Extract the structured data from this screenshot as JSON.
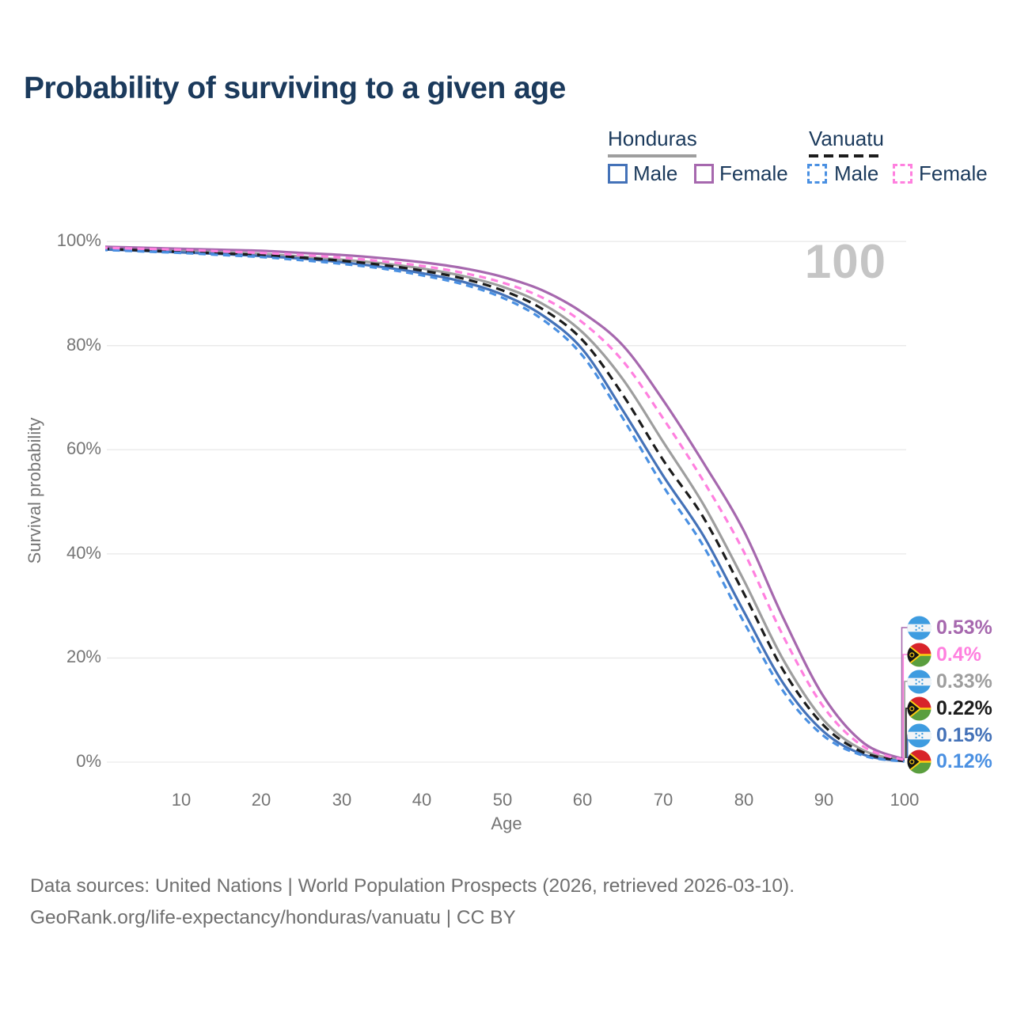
{
  "title": "Probability of surviving to a given age",
  "watermark": "100",
  "legend": {
    "groups": [
      {
        "label": "Honduras",
        "line_style": "solid",
        "underline_color": "#9e9e9e",
        "items": [
          {
            "label": "Male",
            "color": "#4472b8"
          },
          {
            "label": "Female",
            "color": "#a668ae"
          }
        ]
      },
      {
        "label": "Vanuatu",
        "line_style": "dashed",
        "underline_color": "#1c1c1c",
        "items": [
          {
            "label": "Male",
            "color": "#4a90e2"
          },
          {
            "label": "Female",
            "color": "#ff80df"
          }
        ]
      }
    ]
  },
  "chart_data": {
    "type": "line",
    "title": "Probability of surviving to a given age",
    "xlabel": "Age",
    "ylabel": "Survival probability",
    "xlim": [
      0,
      100
    ],
    "ylim": [
      0,
      100
    ],
    "grid": "horizontal",
    "x_tick_labels": [
      "10",
      "20",
      "30",
      "40",
      "50",
      "60",
      "70",
      "80",
      "90",
      "100"
    ],
    "x_tick_values": [
      10,
      20,
      30,
      40,
      50,
      60,
      70,
      80,
      90,
      100
    ],
    "y_tick_labels": [
      "0%",
      "20%",
      "40%",
      "60%",
      "80%",
      "100%"
    ],
    "y_tick_values": [
      0,
      20,
      40,
      60,
      80,
      100
    ],
    "x": [
      0,
      5,
      10,
      15,
      20,
      25,
      30,
      35,
      40,
      45,
      50,
      55,
      60,
      65,
      70,
      75,
      80,
      85,
      90,
      95,
      100
    ],
    "series": [
      {
        "name": "Honduras Both sexes",
        "country": "Honduras",
        "dash": false,
        "color": "#9e9e9e",
        "values": [
          98.7,
          98.4,
          98.2,
          97.9,
          97.6,
          97.1,
          96.5,
          95.8,
          94.8,
          93.4,
          91.3,
          88.0,
          82.5,
          73.5,
          61.5,
          49.5,
          35.0,
          19.5,
          8.0,
          2.2,
          0.33
        ],
        "end_label": "0.33%"
      },
      {
        "name": "Honduras Male",
        "country": "Honduras",
        "dash": false,
        "color": "#4472b8",
        "values": [
          98.5,
          98.2,
          97.9,
          97.6,
          97.2,
          96.7,
          96.0,
          95.1,
          93.9,
          92.3,
          89.8,
          85.8,
          79.2,
          67.5,
          55.0,
          43.5,
          29.0,
          15.0,
          5.8,
          1.4,
          0.15
        ],
        "end_label": "0.15%"
      },
      {
        "name": "Honduras Female",
        "country": "Honduras",
        "dash": false,
        "color": "#a668ae",
        "values": [
          99.0,
          98.8,
          98.6,
          98.4,
          98.2,
          97.8,
          97.4,
          96.8,
          96.0,
          94.9,
          93.2,
          90.6,
          86.3,
          80.0,
          69.5,
          57.5,
          44.5,
          27.5,
          12.5,
          3.6,
          0.53
        ],
        "end_label": "0.53%"
      },
      {
        "name": "Vanuatu Both sexes",
        "country": "Vanuatu",
        "dash": true,
        "color": "#1c1c1c",
        "values": [
          98.6,
          98.3,
          98.0,
          97.7,
          97.4,
          96.9,
          96.3,
          95.5,
          94.4,
          92.9,
          90.6,
          87.0,
          81.0,
          70.5,
          58.0,
          47.0,
          32.5,
          17.5,
          7.0,
          1.8,
          0.22
        ],
        "end_label": "0.22%"
      },
      {
        "name": "Vanuatu Male",
        "country": "Vanuatu",
        "dash": true,
        "color": "#4a90e2",
        "values": [
          98.4,
          98.1,
          97.8,
          97.4,
          97.0,
          96.4,
          95.7,
          94.8,
          93.5,
          91.8,
          89.2,
          85.0,
          78.0,
          66.0,
          53.0,
          41.5,
          27.0,
          13.5,
          5.0,
          1.2,
          0.12
        ],
        "end_label": "0.12%"
      },
      {
        "name": "Vanuatu Female",
        "country": "Vanuatu",
        "dash": true,
        "color": "#ff80df",
        "values": [
          98.8,
          98.6,
          98.4,
          98.1,
          97.8,
          97.4,
          96.9,
          96.2,
          95.3,
          94.0,
          92.1,
          89.2,
          84.4,
          77.0,
          66.0,
          54.0,
          40.5,
          24.0,
          10.5,
          2.9,
          0.4
        ],
        "end_label": "0.4%"
      }
    ]
  },
  "end_labels": [
    {
      "flag": "honduras",
      "text": "0.53%",
      "color": "#a668ae"
    },
    {
      "flag": "vanuatu",
      "text": "0.4%",
      "color": "#ff80df"
    },
    {
      "flag": "honduras",
      "text": "0.33%",
      "color": "#9e9e9e"
    },
    {
      "flag": "vanuatu",
      "text": "0.22%",
      "color": "#1c1c1c"
    },
    {
      "flag": "honduras",
      "text": "0.15%",
      "color": "#4472b8"
    },
    {
      "flag": "vanuatu",
      "text": "0.12%",
      "color": "#4a90e2"
    }
  ],
  "footer": {
    "line1": "Data sources: United Nations | World Population Prospects (2026, retrieved 2026-03-10).",
    "line2": "GeoRank.org/life-expectancy/honduras/vanuatu | CC BY"
  }
}
